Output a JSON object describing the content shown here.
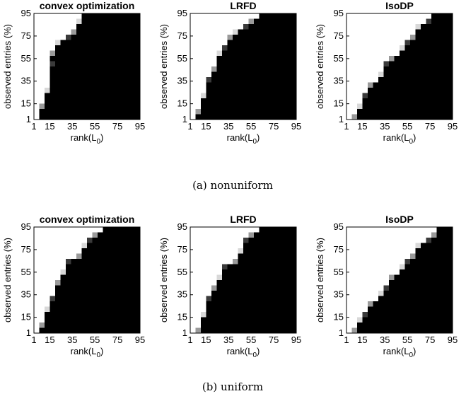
{
  "chart_data": [
    {
      "type": "heatmap",
      "panel_title": "convex optimization",
      "group_caption": "(a) nonuniform",
      "xlabel_base": "rank(L",
      "xlabel_sub": "0",
      "xlabel_tail": ")",
      "ylabel": "observed entries (%)",
      "x_ticks": [
        "1",
        "15",
        "35",
        "55",
        "75",
        "95"
      ],
      "y_ticks": [
        "95",
        "75",
        "55",
        "35",
        "15",
        "1"
      ],
      "x_range": [
        1,
        95
      ],
      "y_range": [
        1,
        95
      ],
      "color_scale": "black = failure, white = exact recovery",
      "boundary": [
        [
          1,
          1
        ],
        [
          5,
          13
        ],
        [
          9,
          31
        ],
        [
          13,
          52
        ],
        [
          17,
          64
        ],
        [
          22,
          71
        ],
        [
          27,
          77
        ],
        [
          32,
          83
        ],
        [
          37,
          89
        ],
        [
          42,
          95
        ],
        [
          47,
          95
        ]
      ]
    },
    {
      "type": "heatmap",
      "panel_title": "LRFD",
      "group_caption": "(a) nonuniform",
      "xlabel_base": "rank(L",
      "xlabel_sub": "0",
      "xlabel_tail": ")",
      "ylabel": "observed entries (%)",
      "x_ticks": [
        "1",
        "15",
        "35",
        "55",
        "75",
        "95"
      ],
      "y_ticks": [
        "95",
        "75",
        "55",
        "35",
        "15",
        "1"
      ],
      "x_range": [
        1,
        95
      ],
      "y_range": [
        1,
        95
      ],
      "color_scale": "black = failure, white = exact recovery",
      "boundary": [
        [
          1,
          1
        ],
        [
          5,
          10
        ],
        [
          9,
          23
        ],
        [
          14,
          37
        ],
        [
          18,
          50
        ],
        [
          23,
          60
        ],
        [
          28,
          68
        ],
        [
          34,
          74
        ],
        [
          40,
          80
        ],
        [
          47,
          86
        ],
        [
          54,
          92
        ],
        [
          60,
          95
        ]
      ]
    },
    {
      "type": "heatmap",
      "panel_title": "IsoDP",
      "group_caption": "(a) nonuniform",
      "xlabel_base": "rank(L",
      "xlabel_sub": "0",
      "xlabel_tail": ")",
      "ylabel": "observed entries (%)",
      "x_ticks": [
        "1",
        "15",
        "35",
        "55",
        "75",
        "95"
      ],
      "y_ticks": [
        "95",
        "75",
        "55",
        "35",
        "15",
        "1"
      ],
      "x_range": [
        1,
        95
      ],
      "y_range": [
        1,
        95
      ],
      "color_scale": "black = failure, white = exact recovery",
      "boundary": [
        [
          1,
          1
        ],
        [
          6,
          4
        ],
        [
          11,
          14
        ],
        [
          16,
          24
        ],
        [
          22,
          33
        ],
        [
          28,
          42
        ],
        [
          34,
          51
        ],
        [
          40,
          59
        ],
        [
          46,
          66
        ],
        [
          52,
          72
        ],
        [
          58,
          78
        ],
        [
          64,
          84
        ],
        [
          70,
          90
        ],
        [
          76,
          95
        ]
      ]
    },
    {
      "type": "heatmap",
      "panel_title": "convex optimization",
      "group_caption": "(b) uniform",
      "xlabel_base": "rank(L",
      "xlabel_sub": "0",
      "xlabel_tail": ")",
      "ylabel": "observed entries (%)",
      "x_ticks": [
        "1",
        "15",
        "35",
        "55",
        "75",
        "95"
      ],
      "y_ticks": [
        "95",
        "75",
        "55",
        "35",
        "15",
        "1"
      ],
      "x_range": [
        1,
        95
      ],
      "y_range": [
        1,
        95
      ],
      "color_scale": "black = failure, white = exact recovery",
      "boundary": [
        [
          1,
          1
        ],
        [
          5,
          10
        ],
        [
          10,
          24
        ],
        [
          15,
          36
        ],
        [
          20,
          48
        ],
        [
          25,
          57
        ],
        [
          31,
          65
        ],
        [
          37,
          72
        ],
        [
          43,
          79
        ],
        [
          49,
          85
        ],
        [
          55,
          90
        ],
        [
          61,
          95
        ],
        [
          66,
          95
        ]
      ]
    },
    {
      "type": "heatmap",
      "panel_title": "LRFD",
      "group_caption": "(b) uniform",
      "xlabel_base": "rank(L",
      "xlabel_sub": "0",
      "xlabel_tail": ")",
      "ylabel": "observed entries (%)",
      "x_ticks": [
        "1",
        "15",
        "35",
        "55",
        "75",
        "95"
      ],
      "y_ticks": [
        "95",
        "75",
        "55",
        "35",
        "15",
        "1"
      ],
      "x_range": [
        1,
        95
      ],
      "y_range": [
        1,
        95
      ],
      "color_scale": "black = failure, white = exact recovery",
      "boundary": [
        [
          1,
          1
        ],
        [
          5,
          8
        ],
        [
          10,
          20
        ],
        [
          15,
          32
        ],
        [
          20,
          43
        ],
        [
          25,
          52
        ],
        [
          31,
          61
        ],
        [
          37,
          69
        ],
        [
          43,
          77
        ],
        [
          49,
          84
        ],
        [
          55,
          90
        ],
        [
          61,
          95
        ],
        [
          66,
          95
        ]
      ]
    },
    {
      "type": "heatmap",
      "panel_title": "IsoDP",
      "group_caption": "(b) uniform",
      "xlabel_base": "rank(L",
      "xlabel_sub": "0",
      "xlabel_tail": ")",
      "ylabel": "observed entries (%)",
      "x_ticks": [
        "1",
        "15",
        "35",
        "55",
        "75",
        "95"
      ],
      "y_ticks": [
        "95",
        "75",
        "55",
        "35",
        "15",
        "1"
      ],
      "x_range": [
        1,
        95
      ],
      "y_range": [
        1,
        95
      ],
      "color_scale": "black = failure, white = exact recovery",
      "boundary": [
        [
          1,
          1
        ],
        [
          6,
          5
        ],
        [
          11,
          13
        ],
        [
          16,
          21
        ],
        [
          22,
          29
        ],
        [
          28,
          37
        ],
        [
          34,
          45
        ],
        [
          40,
          53
        ],
        [
          46,
          60
        ],
        [
          52,
          67
        ],
        [
          58,
          73
        ],
        [
          64,
          79
        ],
        [
          70,
          85
        ],
        [
          76,
          91
        ],
        [
          82,
          95
        ]
      ]
    }
  ],
  "captions": [
    "(a) nonuniform",
    "(b) uniform"
  ]
}
